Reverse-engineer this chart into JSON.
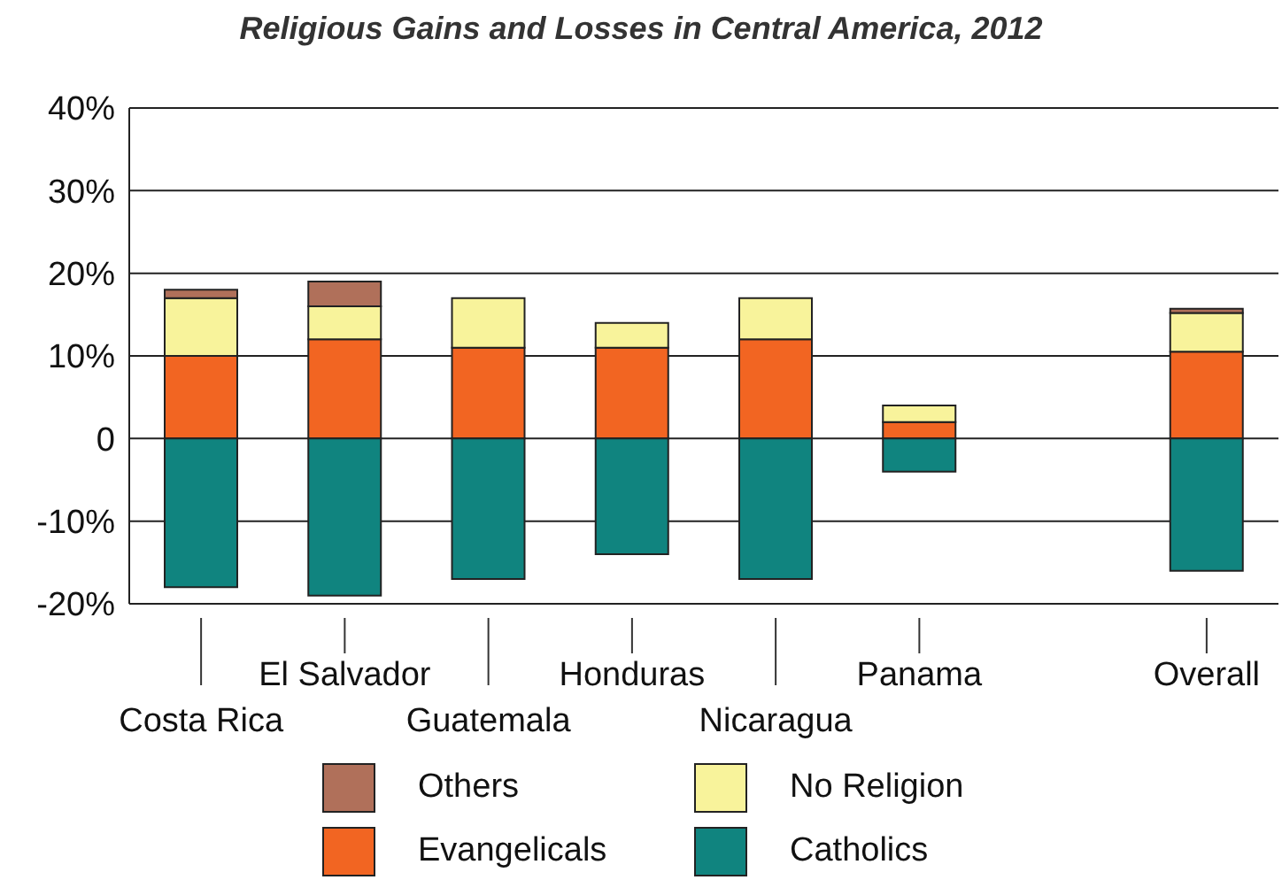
{
  "chart_data": {
    "type": "bar",
    "title": "Religious Gains and Losses in Central America, 2012",
    "categories": [
      "Costa Rica",
      "El Salvador",
      "Guatemala",
      "Honduras",
      "Nicaragua",
      "Panama",
      null,
      "Overall"
    ],
    "stacked": true,
    "series": [
      {
        "name": "Evangelicals",
        "color": "#f26522",
        "values": [
          10,
          12,
          11,
          11,
          12,
          2,
          null,
          10.5
        ]
      },
      {
        "name": "No Religion",
        "color": "#f8f39b",
        "values": [
          7,
          4,
          6,
          3,
          5,
          2,
          null,
          4.7
        ]
      },
      {
        "name": "Others",
        "color": "#b0705a",
        "values": [
          1,
          3,
          null,
          null,
          null,
          null,
          null,
          0.5
        ]
      },
      {
        "name": "Catholics",
        "color": "#10847f",
        "values": [
          -18,
          -19,
          -17,
          -14,
          -17,
          -4,
          null,
          -16
        ]
      }
    ],
    "ylim": [
      -20,
      40
    ],
    "yticks": [
      {
        "value": -20,
        "label": "-20%"
      },
      {
        "value": -10,
        "label": "-10%"
      },
      {
        "value": 0,
        "label": "0"
      },
      {
        "value": 10,
        "label": "10%"
      },
      {
        "value": 20,
        "label": "20%"
      },
      {
        "value": 30,
        "label": "30%"
      },
      {
        "value": 40,
        "label": "40%"
      }
    ],
    "grid": "y",
    "legend": "bottom"
  }
}
